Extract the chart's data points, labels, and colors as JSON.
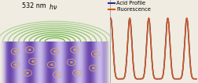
{
  "fig_width": 2.52,
  "fig_height": 1.06,
  "dpi": 100,
  "bg_color": "#f0ece2",
  "legend_entries": [
    {
      "label": "Acid Profile",
      "color": "#2b2b8c"
    },
    {
      "label": "Fluorescence",
      "color": "#d4581a"
    }
  ],
  "green_arc_color": "#5ab030",
  "photoacid_color": "#d4a870",
  "acid_profile_color": "#2b2b8c",
  "fluorescence_color": "#d4581a",
  "stripe_dark": "#8060b0",
  "stripe_light": "#d8ccee",
  "stripe_base": "#c0aede"
}
